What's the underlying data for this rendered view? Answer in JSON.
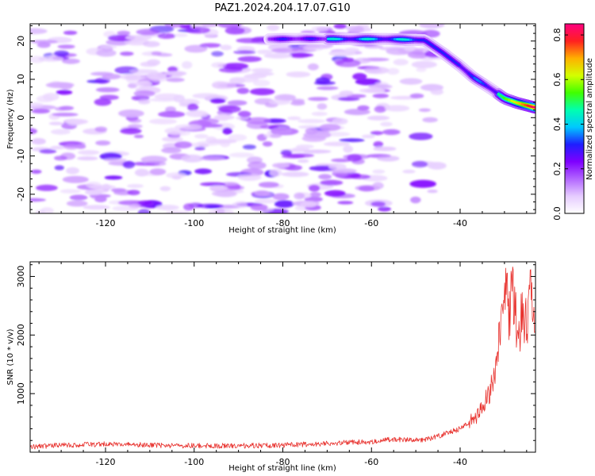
{
  "title": "PAZ1.2024.204.17.07.G10",
  "chart_data": [
    {
      "type": "heatmap",
      "xlabel": "Height of straight line (km)",
      "ylabel": "Frequency (Hz)",
      "xlim": [
        -137,
        -23
      ],
      "ylim": [
        -25,
        24.5
      ],
      "xticks": [
        -120,
        -100,
        -80,
        -60,
        -40
      ],
      "yticks": [
        -20,
        -10,
        0,
        10,
        20
      ],
      "colorbar": {
        "label": "Normalized spectral amplitude",
        "range": [
          0.0,
          0.85
        ],
        "ticks": [
          0.0,
          0.2,
          0.4,
          0.6,
          0.8
        ],
        "colormap": [
          "#ffffff",
          "#e6ccff",
          "#b266ff",
          "#7f00ff",
          "#1e1eff",
          "#00c8ff",
          "#00ffb0",
          "#40ff00",
          "#d4ff00",
          "#ffb000",
          "#ff2020",
          "#ff0080"
        ]
      },
      "ridge": {
        "points": [
          [
            -83,
            20.5
          ],
          [
            -75,
            20.6
          ],
          [
            -65,
            20.5
          ],
          [
            -55,
            20.5
          ],
          [
            -48,
            20.2
          ],
          [
            -44,
            17
          ],
          [
            -40,
            13.5
          ],
          [
            -37,
            10.5
          ],
          [
            -33,
            7.5
          ],
          [
            -30,
            5
          ],
          [
            -27,
            3.8
          ],
          [
            -23,
            2.6
          ]
        ],
        "peak_amplitude": 0.85
      },
      "background": "noise",
      "grid": false
    },
    {
      "type": "line",
      "xlabel": "Height of straight line (km)",
      "ylabel": "SNR (10 * v/v)",
      "xlim": [
        -137,
        -23
      ],
      "ylim": [
        0,
        3250
      ],
      "xticks": [
        -120,
        -100,
        -80,
        -60,
        -40
      ],
      "yticks": [
        1000,
        2000,
        3000
      ],
      "color": "#e8322e",
      "x": [
        -137,
        -130,
        -120,
        -110,
        -100,
        -90,
        -80,
        -70,
        -60,
        -55,
        -50,
        -47,
        -44,
        -42,
        -40,
        -38,
        -36,
        -34,
        -32,
        -31,
        -30,
        -29,
        -28,
        -27,
        -26,
        -25,
        -24,
        -23
      ],
      "y": [
        90,
        120,
        140,
        120,
        110,
        110,
        120,
        150,
        180,
        220,
        200,
        230,
        300,
        350,
        400,
        500,
        650,
        900,
        1400,
        2000,
        2700,
        2400,
        2700,
        1900,
        2500,
        2200,
        2650,
        1700
      ],
      "grid": false
    }
  ]
}
